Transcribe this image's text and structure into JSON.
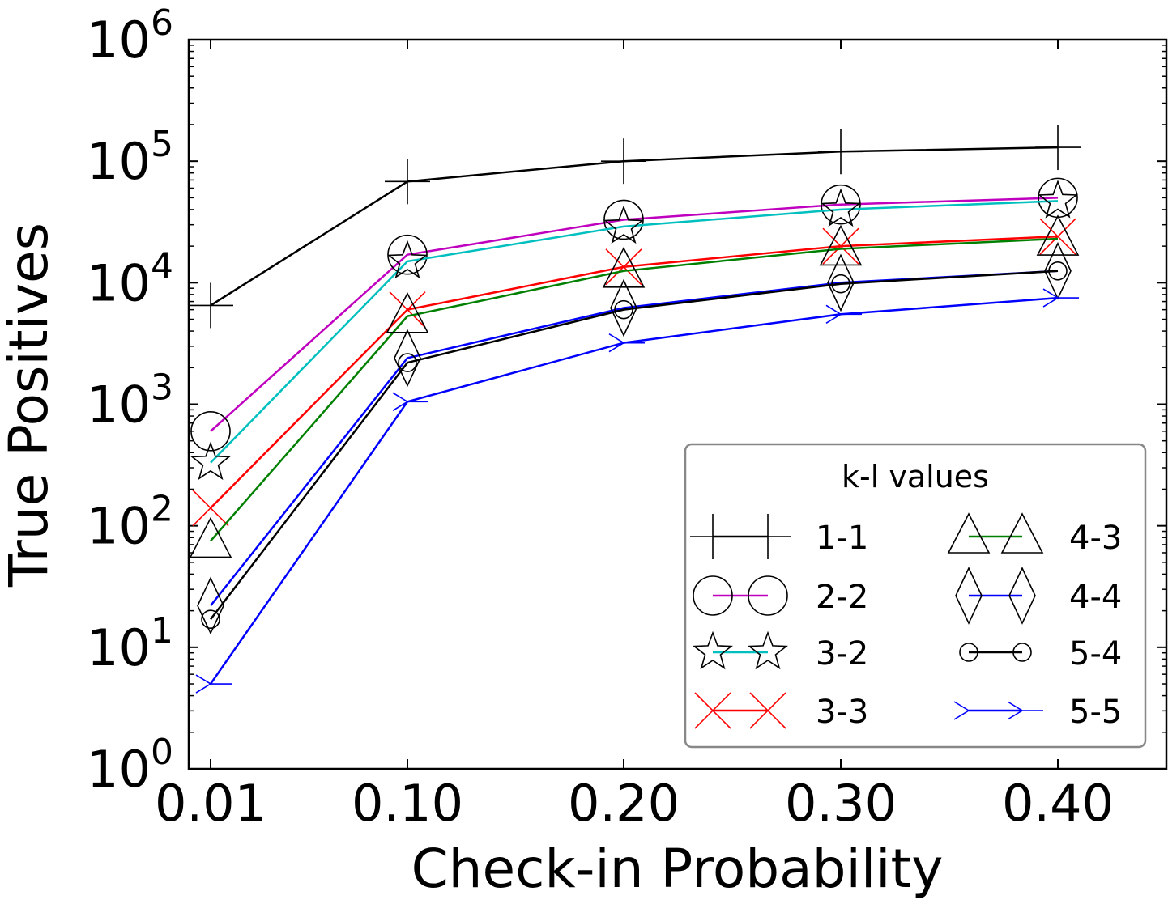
{
  "chart_data": {
    "type": "line",
    "title": "",
    "xlabel": "Check-in Probability",
    "ylabel": "True Positives",
    "yscale": "log",
    "ylim": [
      1,
      1000000
    ],
    "categories": [
      "0.01",
      "0.10",
      "0.20",
      "0.30",
      "0.40"
    ],
    "x": [
      0.01,
      0.1,
      0.2,
      0.3,
      0.4
    ],
    "y_ticks": [
      {
        "base": "10",
        "exp": "0"
      },
      {
        "base": "10",
        "exp": "1"
      },
      {
        "base": "10",
        "exp": "2"
      },
      {
        "base": "10",
        "exp": "3"
      },
      {
        "base": "10",
        "exp": "4"
      },
      {
        "base": "10",
        "exp": "5"
      },
      {
        "base": "10",
        "exp": "6"
      }
    ],
    "legend_title": "k-l values",
    "legend_position": "lower-right",
    "series": [
      {
        "name": "1-1",
        "color": "#000000",
        "marker": "plus",
        "values": [
          6500,
          68000,
          100000,
          120000,
          130000
        ]
      },
      {
        "name": "2-2",
        "color": "#bf00bf",
        "marker": "circle-large",
        "values": [
          600,
          17000,
          33000,
          44000,
          50000
        ]
      },
      {
        "name": "3-2",
        "color": "#00bfbf",
        "marker": "star",
        "values": [
          330,
          15000,
          29000,
          40000,
          47000
        ]
      },
      {
        "name": "3-3",
        "color": "#ff0000",
        "marker": "x",
        "values": [
          140,
          6000,
          13500,
          20000,
          24000
        ]
      },
      {
        "name": "4-3",
        "color": "#008000",
        "marker": "triangle",
        "values": [
          75,
          5300,
          12500,
          19000,
          23000
        ]
      },
      {
        "name": "4-4",
        "color": "#0000ff",
        "marker": "diamond",
        "values": [
          22,
          2400,
          6200,
          10000,
          12500
        ]
      },
      {
        "name": "5-4",
        "color": "#000000",
        "marker": "circle-small",
        "values": [
          17,
          2200,
          6000,
          9800,
          12500
        ]
      },
      {
        "name": "5-5",
        "color": "#0000ff",
        "marker": "tri-right",
        "values": [
          5,
          1050,
          3200,
          5500,
          7500
        ]
      }
    ]
  }
}
